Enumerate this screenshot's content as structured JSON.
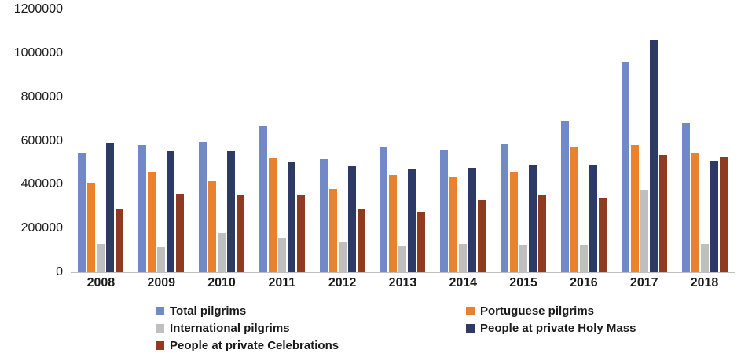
{
  "chart_data": {
    "type": "bar",
    "title": "",
    "xlabel": "",
    "ylabel": "",
    "ylim": [
      0,
      1200000
    ],
    "ytick_step": 200000,
    "grid": false,
    "legend_position": "bottom",
    "categories": [
      "2008",
      "2009",
      "2010",
      "2011",
      "2012",
      "2013",
      "2014",
      "2015",
      "2016",
      "2017",
      "2018"
    ],
    "series": [
      {
        "name": "Total pilgrims",
        "color": "#7289c7",
        "values": [
          545000,
          580000,
          595000,
          670000,
          515000,
          570000,
          560000,
          585000,
          690000,
          960000,
          680000
        ]
      },
      {
        "name": "Portuguese pilgrims",
        "color": "#e8822e",
        "values": [
          410000,
          460000,
          415000,
          520000,
          380000,
          445000,
          435000,
          460000,
          570000,
          580000,
          545000
        ]
      },
      {
        "name": "International pilgrims",
        "color": "#bfbfbf",
        "values": [
          130000,
          115000,
          180000,
          155000,
          135000,
          120000,
          130000,
          125000,
          125000,
          375000,
          130000
        ]
      },
      {
        "name": "People at private Holy Mass",
        "color": "#2d3a66",
        "values": [
          590000,
          550000,
          550000,
          500000,
          485000,
          470000,
          475000,
          490000,
          490000,
          1060000,
          510000
        ]
      },
      {
        "name": "People at private Celebrations",
        "color": "#8f3b22",
        "values": [
          290000,
          360000,
          350000,
          355000,
          290000,
          275000,
          330000,
          350000,
          340000,
          535000,
          525000
        ]
      }
    ]
  }
}
